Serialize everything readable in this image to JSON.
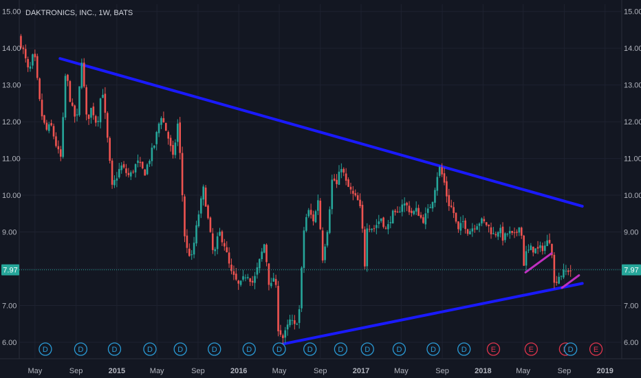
{
  "header": {
    "title": "DAKTRONICS, INC., 1W, BATS"
  },
  "colors": {
    "background": "#131722",
    "grid": "#1e2230",
    "up": "#26a69a",
    "down": "#ef5350",
    "trendline": "#1a1aff",
    "pattern": "#c02fc0",
    "price_label": "#26a69a",
    "dividend": "#2a9bd6",
    "earnings": "#e0344c"
  },
  "price": {
    "current": 7.97,
    "label": "7.97"
  },
  "chart_data": {
    "type": "candlestick",
    "title": "DAKTRONICS, INC., 1W, BATS",
    "ylim": [
      5.55,
      15.2
    ],
    "y_ticks": [
      "6.00",
      "7.00",
      "8.00",
      "9.00",
      "10.00",
      "11.00",
      "12.00",
      "13.00",
      "14.00",
      "15.00"
    ],
    "y_tick_values": [
      6,
      7,
      8,
      9,
      10,
      11,
      12,
      13,
      14,
      15
    ],
    "x_ticks": [
      "May",
      "Sep",
      "2015",
      "May",
      "Sep",
      "2016",
      "May",
      "Sep",
      "2017",
      "May",
      "Sep",
      "2018",
      "May",
      "Sep",
      "2019"
    ],
    "x_tick_dates": [
      "2014-05-01",
      "2014-09-01",
      "2015-01-01",
      "2015-05-01",
      "2015-09-01",
      "2016-01-01",
      "2016-05-01",
      "2016-09-01",
      "2017-01-01",
      "2017-05-01",
      "2017-09-01",
      "2018-01-01",
      "2018-05-01",
      "2018-09-01",
      "2019-01-01"
    ],
    "x_range": [
      "2014-03-15",
      "2019-02-20"
    ],
    "trendlines": [
      {
        "from": [
          "2014-07-15",
          13.72
        ],
        "to": [
          "2018-10-25",
          9.7
        ],
        "color": "#1a1aff"
      },
      {
        "from": [
          "2016-04-25",
          5.92
        ],
        "to": [
          "2018-10-25",
          7.6
        ],
        "color": "#1a1aff"
      }
    ],
    "pattern_lines": [
      {
        "from": [
          "2018-05-08",
          7.9
        ],
        "to": [
          "2018-07-25",
          8.42
        ]
      },
      {
        "from": [
          "2018-08-25",
          7.48
        ],
        "to": [
          "2018-10-15",
          7.82
        ]
      }
    ],
    "keypoints": [
      [
        "2014-03-20",
        14.3
      ],
      [
        "2014-04-01",
        14.0
      ],
      [
        "2014-04-20",
        13.3
      ],
      [
        "2014-05-05",
        13.9
      ],
      [
        "2014-05-25",
        12.3
      ],
      [
        "2014-06-10",
        11.75
      ],
      [
        "2014-06-25",
        11.9
      ],
      [
        "2014-07-15",
        11.2
      ],
      [
        "2014-07-25",
        11.0
      ],
      [
        "2014-08-08",
        13.4
      ],
      [
        "2014-08-25",
        12.4
      ],
      [
        "2014-09-10",
        12.0
      ],
      [
        "2014-09-25",
        13.7
      ],
      [
        "2014-10-10",
        12.0
      ],
      [
        "2014-10-25",
        12.4
      ],
      [
        "2014-11-10",
        11.9
      ],
      [
        "2014-11-25",
        13.0
      ],
      [
        "2014-12-10",
        11.6
      ],
      [
        "2014-12-25",
        10.2
      ],
      [
        "2015-01-20",
        10.8
      ],
      [
        "2015-02-15",
        10.5
      ],
      [
        "2015-03-10",
        10.9
      ],
      [
        "2015-04-01",
        10.6
      ],
      [
        "2015-05-01",
        11.4
      ],
      [
        "2015-05-20",
        12.2
      ],
      [
        "2015-06-10",
        11.6
      ],
      [
        "2015-06-25",
        11.0
      ],
      [
        "2015-07-10",
        12.0
      ],
      [
        "2015-07-18",
        10.8
      ],
      [
        "2015-08-01",
        8.6
      ],
      [
        "2015-08-20",
        8.3
      ],
      [
        "2015-09-10",
        9.5
      ],
      [
        "2015-09-25",
        10.2
      ],
      [
        "2015-10-10",
        9.2
      ],
      [
        "2015-10-25",
        8.3
      ],
      [
        "2015-11-10",
        9.0
      ],
      [
        "2015-11-25",
        8.7
      ],
      [
        "2015-12-15",
        7.9
      ],
      [
        "2016-01-10",
        7.5
      ],
      [
        "2016-02-01",
        7.9
      ],
      [
        "2016-02-20",
        7.6
      ],
      [
        "2016-03-10",
        8.2
      ],
      [
        "2016-03-25",
        8.7
      ],
      [
        "2016-04-10",
        7.4
      ],
      [
        "2016-04-25",
        7.9
      ],
      [
        "2016-05-05",
        6.4
      ],
      [
        "2016-05-20",
        6.1
      ],
      [
        "2016-06-10",
        6.6
      ],
      [
        "2016-06-25",
        6.4
      ],
      [
        "2016-07-10",
        7.0
      ],
      [
        "2016-07-18",
        8.9
      ],
      [
        "2016-08-01",
        9.6
      ],
      [
        "2016-08-20",
        9.3
      ],
      [
        "2016-09-01",
        9.9
      ],
      [
        "2016-09-15",
        8.3
      ],
      [
        "2016-10-01",
        9.2
      ],
      [
        "2016-10-15",
        10.6
      ],
      [
        "2016-10-25",
        10.2
      ],
      [
        "2016-11-10",
        10.8
      ],
      [
        "2016-11-25",
        10.3
      ],
      [
        "2016-12-15",
        10.0
      ],
      [
        "2017-01-01",
        9.8
      ],
      [
        "2017-01-10",
        9.4
      ],
      [
        "2017-01-18",
        7.95
      ],
      [
        "2017-01-25",
        9.2
      ],
      [
        "2017-02-15",
        9.1
      ],
      [
        "2017-03-10",
        9.4
      ],
      [
        "2017-03-25",
        9.0
      ],
      [
        "2017-04-10",
        9.5
      ],
      [
        "2017-04-25",
        9.4
      ],
      [
        "2017-05-10",
        9.8
      ],
      [
        "2017-05-25",
        9.7
      ],
      [
        "2017-06-10",
        9.5
      ],
      [
        "2017-06-25",
        9.6
      ],
      [
        "2017-07-10",
        9.3
      ],
      [
        "2017-07-25",
        9.5
      ],
      [
        "2017-08-10",
        9.9
      ],
      [
        "2017-08-25",
        10.6
      ],
      [
        "2017-09-01",
        10.75
      ],
      [
        "2017-09-15",
        10.3
      ],
      [
        "2017-09-25",
        9.8
      ],
      [
        "2017-10-10",
        9.6
      ],
      [
        "2017-10-25",
        9.0
      ],
      [
        "2017-11-10",
        9.3
      ],
      [
        "2017-11-25",
        9.0
      ],
      [
        "2017-12-15",
        9.2
      ],
      [
        "2018-01-01",
        9.3
      ],
      [
        "2018-01-20",
        9.2
      ],
      [
        "2018-02-10",
        8.9
      ],
      [
        "2018-02-25",
        9.1
      ],
      [
        "2018-03-10",
        8.8
      ],
      [
        "2018-03-25",
        9.0
      ],
      [
        "2018-04-10",
        8.85
      ],
      [
        "2018-04-25",
        9.1
      ],
      [
        "2018-05-01",
        9.9
      ],
      [
        "2018-05-05",
        7.9
      ],
      [
        "2018-05-15",
        8.4
      ],
      [
        "2018-06-01",
        8.55
      ],
      [
        "2018-06-20",
        8.5
      ],
      [
        "2018-07-10",
        8.6
      ],
      [
        "2018-07-25",
        8.8
      ],
      [
        "2018-08-01",
        8.8
      ],
      [
        "2018-08-05",
        7.5
      ],
      [
        "2018-08-20",
        7.8
      ],
      [
        "2018-09-10",
        7.9
      ],
      [
        "2018-09-20",
        7.97
      ]
    ],
    "events": [
      {
        "type": "D",
        "date": "2014-06-01"
      },
      {
        "type": "D",
        "date": "2014-09-15"
      },
      {
        "type": "D",
        "date": "2014-12-25"
      },
      {
        "type": "D",
        "date": "2015-04-10"
      },
      {
        "type": "D",
        "date": "2015-07-10"
      },
      {
        "type": "D",
        "date": "2015-10-20"
      },
      {
        "type": "D",
        "date": "2016-02-01"
      },
      {
        "type": "D",
        "date": "2016-05-01"
      },
      {
        "type": "D",
        "date": "2016-08-01"
      },
      {
        "type": "D",
        "date": "2016-11-01"
      },
      {
        "type": "D",
        "date": "2017-01-20"
      },
      {
        "type": "D",
        "date": "2017-04-25"
      },
      {
        "type": "D",
        "date": "2017-08-05"
      },
      {
        "type": "D",
        "date": "2017-11-05"
      },
      {
        "type": "E",
        "date": "2018-02-01"
      },
      {
        "type": "E",
        "date": "2018-05-25"
      },
      {
        "type": "E",
        "date": "2018-09-05"
      },
      {
        "type": "D",
        "date": "2018-09-20"
      },
      {
        "type": "E",
        "date": "2018-12-05"
      }
    ]
  }
}
